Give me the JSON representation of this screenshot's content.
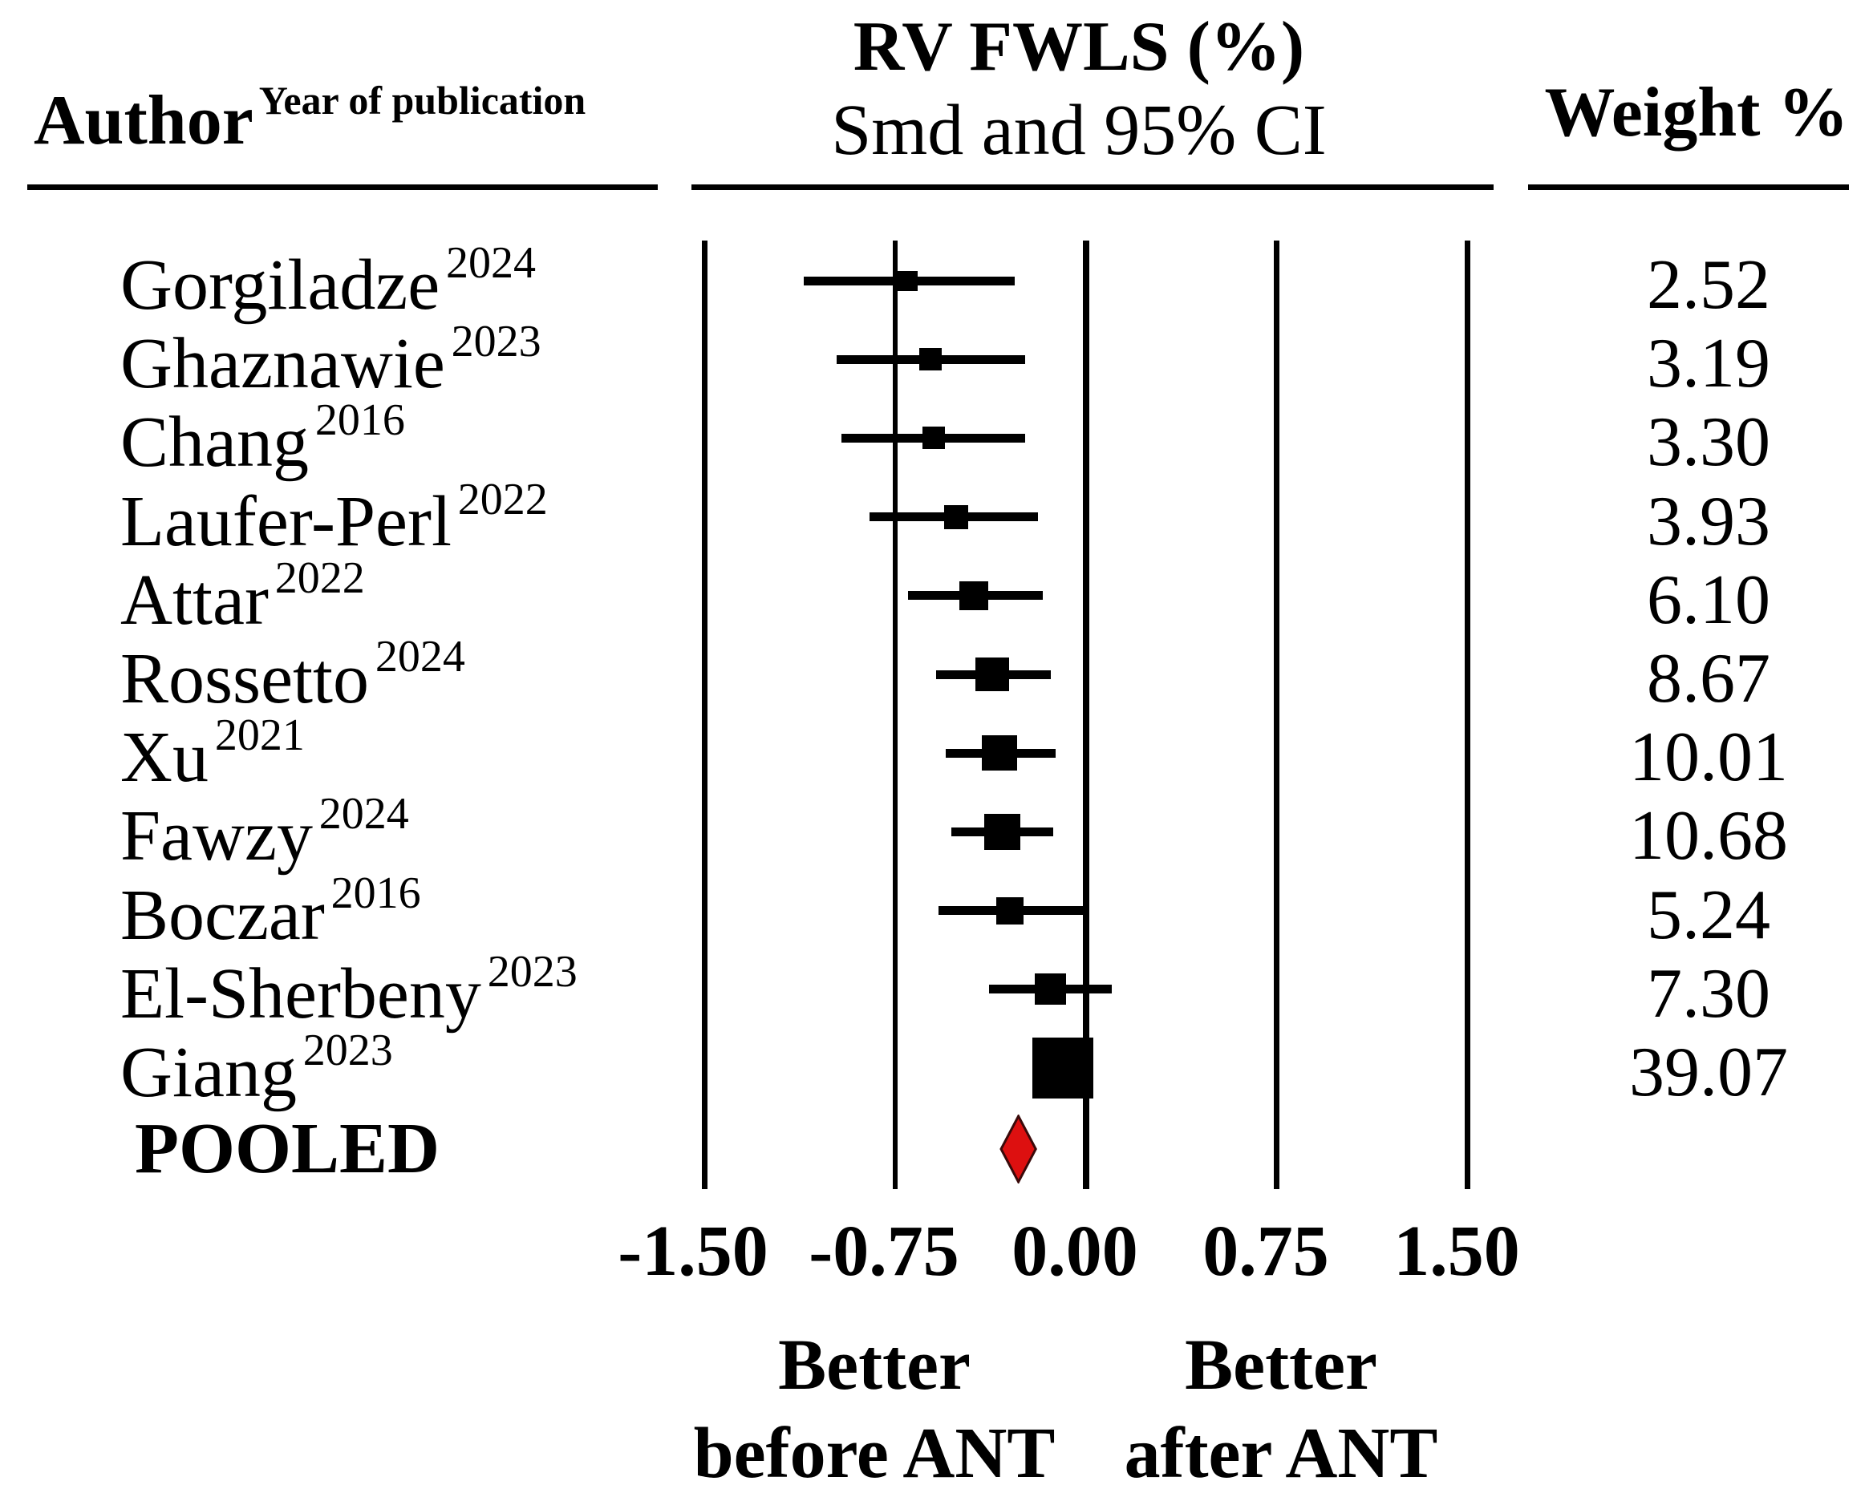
{
  "header": {
    "author_label": "Author",
    "author_superscript": "Year of publication",
    "plot_title_line1": "RV FWLS (%)",
    "plot_title_line2": "Smd and 95% CI",
    "weight_label": "Weight %"
  },
  "colors": {
    "text": "#000000",
    "marker": "#000000",
    "diamond_fill": "#dd1010",
    "diamond_stroke": "#3a0a0a"
  },
  "chart_data": {
    "type": "forest",
    "x_axis": {
      "ticks": [
        -1.5,
        -0.75,
        0.0,
        0.75,
        1.5
      ],
      "tick_labels": [
        "-1.50",
        "-0.75",
        "0.00",
        "0.75",
        "1.50"
      ],
      "xlim": [
        -1.5,
        1.5
      ],
      "grid": "vertical-lines"
    },
    "direction_labels": {
      "left": [
        "Better",
        "before ANT"
      ],
      "right": [
        "Better",
        "after ANT"
      ]
    },
    "studies": [
      {
        "author": "Gorgiladze",
        "year": "2024",
        "smd": -0.7,
        "ci_low": -1.11,
        "ci_high": -0.28,
        "weight": 2.52,
        "weight_label": "2.52"
      },
      {
        "author": "Ghaznawie",
        "year": "2023",
        "smd": -0.61,
        "ci_low": -0.98,
        "ci_high": -0.24,
        "weight": 3.19,
        "weight_label": "3.19"
      },
      {
        "author": "Chang",
        "year": "2016",
        "smd": -0.6,
        "ci_low": -0.96,
        "ci_high": -0.24,
        "weight": 3.3,
        "weight_label": "3.30"
      },
      {
        "author": "Laufer-Perl",
        "year": "2022",
        "smd": -0.51,
        "ci_low": -0.85,
        "ci_high": -0.19,
        "weight": 3.93,
        "weight_label": "3.93"
      },
      {
        "author": "Attar",
        "year": "2022",
        "smd": -0.44,
        "ci_low": -0.7,
        "ci_high": -0.17,
        "weight": 6.1,
        "weight_label": "6.10"
      },
      {
        "author": "Rossetto",
        "year": "2024",
        "smd": -0.37,
        "ci_low": -0.59,
        "ci_high": -0.14,
        "weight": 8.67,
        "weight_label": "8.67"
      },
      {
        "author": "Xu",
        "year": "2021",
        "smd": -0.34,
        "ci_low": -0.55,
        "ci_high": -0.12,
        "weight": 10.01,
        "weight_label": "10.01"
      },
      {
        "author": "Fawzy",
        "year": "2024",
        "smd": -0.33,
        "ci_low": -0.53,
        "ci_high": -0.13,
        "weight": 10.68,
        "weight_label": "10.68"
      },
      {
        "author": "Boczar",
        "year": "2016",
        "smd": -0.3,
        "ci_low": -0.58,
        "ci_high": 0.0,
        "weight": 5.24,
        "weight_label": "5.24"
      },
      {
        "author": "El-Sherbeny",
        "year": "2023",
        "smd": -0.14,
        "ci_low": -0.38,
        "ci_high": 0.1,
        "weight": 7.3,
        "weight_label": "7.30"
      },
      {
        "author": "Giang",
        "year": "2023",
        "smd": -0.09,
        "ci_low": null,
        "ci_high": null,
        "weight": 39.07,
        "weight_label": "39.07"
      }
    ],
    "pooled": {
      "label": "POOLED",
      "smd": -0.26,
      "ci_low": -0.33,
      "ci_high": -0.2
    }
  }
}
